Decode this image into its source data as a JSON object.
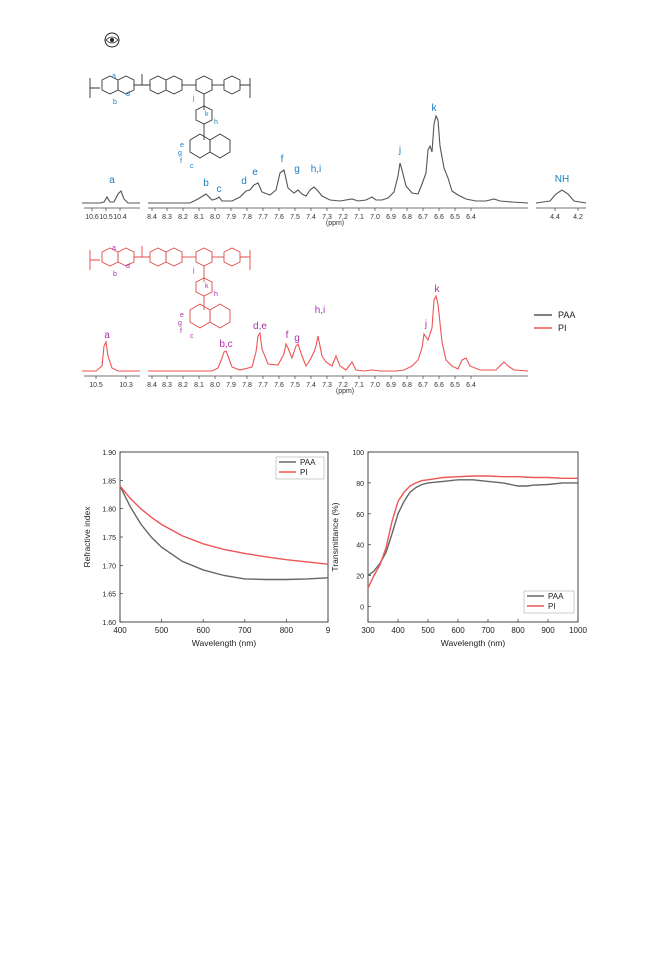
{
  "nmr": {
    "ppm_label": "(ppm)",
    "nh_label": "NH",
    "top_ticks": [
      "10.6",
      "10.5",
      "10.4",
      "8.4",
      "8.3",
      "8.2",
      "8.1",
      "8.0",
      "7.9",
      "7.8",
      "7.7",
      "7.6",
      "7.5",
      "7.4",
      "7.3",
      "7.2",
      "7.1",
      "7.0",
      "6.9",
      "6.8",
      "6.7",
      "6.6",
      "6.5",
      "6.4",
      "4.4",
      "4.2"
    ],
    "bottom_ticks": [
      "10.5",
      "10.3",
      "8.4",
      "8.3",
      "8.2",
      "8.1",
      "8.0",
      "7.9",
      "7.8",
      "7.7",
      "7.6",
      "7.5",
      "7.4",
      "7.3",
      "7.2",
      "7.1",
      "7.0",
      "6.9",
      "6.8",
      "6.7",
      "6.6",
      "6.5",
      "6.4"
    ],
    "paa_peak_labels": [
      "a",
      "b",
      "c",
      "d",
      "e",
      "f",
      "g",
      "h,i",
      "j",
      "k",
      "NH"
    ],
    "pi_peak_labels": [
      "a",
      "b,c",
      "d,e",
      "f",
      "g",
      "h,i",
      "j",
      "k"
    ],
    "legend": [
      "PAA",
      "PI"
    ],
    "colors": {
      "paa": "#555555",
      "pi": "#ee5555",
      "paa_label": "#1a7fc1",
      "pi_label": "#b02fb0"
    }
  },
  "chart_data": [
    {
      "type": "line",
      "xlabel": "Wavelength (nm)",
      "ylabel": "Refractive index",
      "xlim": [
        400,
        900
      ],
      "ylim": [
        1.6,
        1.9
      ],
      "x_ticks": [
        "400",
        "500",
        "600",
        "700",
        "800",
        "9"
      ],
      "y_ticks": [
        "1.60",
        "1.65",
        "1.70",
        "1.75",
        "1.80",
        "1.85",
        "1.90"
      ],
      "legend_position": "top-right",
      "series": [
        {
          "name": "PAA",
          "color": "#666666",
          "x": [
            400,
            425,
            450,
            475,
            500,
            550,
            600,
            650,
            700,
            750,
            800,
            850,
            900
          ],
          "y": [
            1.84,
            1.803,
            1.773,
            1.75,
            1.732,
            1.707,
            1.692,
            1.682,
            1.676,
            1.675,
            1.675,
            1.676,
            1.678
          ]
        },
        {
          "name": "PI",
          "color": "#ee5555",
          "x": [
            400,
            425,
            450,
            475,
            500,
            550,
            600,
            650,
            700,
            750,
            800,
            850,
            900
          ],
          "y": [
            1.84,
            1.818,
            1.8,
            1.785,
            1.772,
            1.752,
            1.738,
            1.728,
            1.721,
            1.715,
            1.71,
            1.706,
            1.702
          ]
        }
      ]
    },
    {
      "type": "line",
      "xlabel": "Wavelength (nm)",
      "ylabel": "Transmittance (%)",
      "xlim": [
        300,
        1000
      ],
      "ylim": [
        -10,
        100
      ],
      "x_ticks": [
        "300",
        "400",
        "500",
        "600",
        "700",
        "800",
        "900",
        "1000"
      ],
      "y_ticks": [
        "0",
        "20",
        "40",
        "60",
        "80",
        "100"
      ],
      "legend_position": "bottom-right",
      "series": [
        {
          "name": "PAA",
          "color": "#666666",
          "x": [
            300,
            320,
            340,
            360,
            380,
            400,
            420,
            440,
            460,
            480,
            500,
            550,
            600,
            650,
            700,
            750,
            800,
            830,
            850,
            900,
            950,
            1000
          ],
          "y": [
            20,
            23,
            28,
            35,
            47,
            60,
            68,
            74,
            77,
            79,
            80,
            81,
            82,
            82,
            81,
            80,
            78,
            78,
            78.5,
            79,
            80,
            80
          ]
        },
        {
          "name": "PI",
          "color": "#ee5555",
          "x": [
            300,
            320,
            340,
            360,
            380,
            400,
            420,
            440,
            460,
            480,
            500,
            550,
            600,
            650,
            700,
            750,
            800,
            850,
            900,
            950,
            1000
          ],
          "y": [
            12,
            20,
            27,
            38,
            55,
            68,
            74,
            78,
            80,
            81.5,
            82,
            83.5,
            84,
            84.5,
            84.5,
            84,
            84,
            83.5,
            83.5,
            83,
            83
          ]
        }
      ]
    }
  ]
}
